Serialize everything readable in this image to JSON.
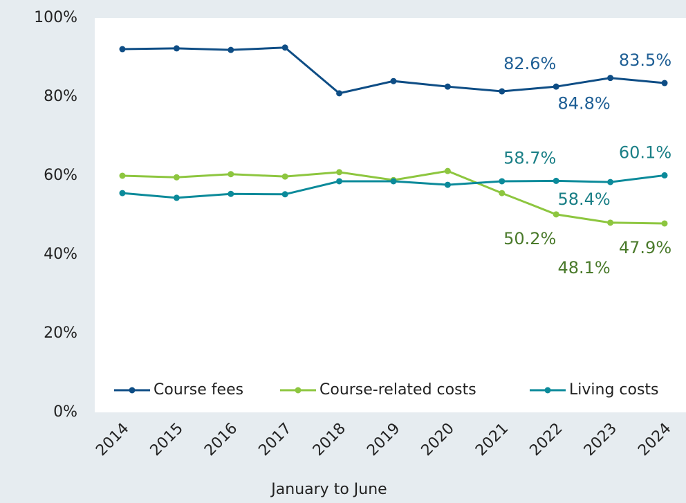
{
  "chart_data": {
    "type": "line",
    "x_label": "January to June",
    "categories": [
      "2014",
      "2015",
      "2016",
      "2017",
      "2018",
      "2019",
      "2020",
      "2021",
      "2022",
      "2023",
      "2024"
    ],
    "series": [
      {
        "name": "Course fees",
        "color": "#0e4d85",
        "label_color": "#1f5f95",
        "values": [
          92.1,
          92.3,
          91.9,
          92.5,
          80.9,
          84.0,
          82.6,
          81.4,
          82.6,
          84.8,
          83.5
        ],
        "value_labels": [
          null,
          null,
          null,
          null,
          null,
          null,
          null,
          null,
          "82.6%",
          "84.8%",
          "83.5%"
        ]
      },
      {
        "name": "Course-related costs",
        "color": "#8dc63f",
        "label_color": "#4a7a2b",
        "values": [
          60.0,
          59.6,
          60.4,
          59.8,
          60.9,
          58.9,
          61.2,
          55.6,
          50.2,
          48.1,
          47.9
        ],
        "value_labels": [
          null,
          null,
          null,
          null,
          null,
          null,
          null,
          null,
          "50.2%",
          "48.1%",
          "47.9%"
        ]
      },
      {
        "name": "Living costs",
        "color": "#0b8a9a",
        "label_color": "#1a7f86",
        "values": [
          55.6,
          54.4,
          55.4,
          55.3,
          58.6,
          58.6,
          57.7,
          58.6,
          58.7,
          58.4,
          60.1
        ],
        "value_labels": [
          null,
          null,
          null,
          null,
          null,
          null,
          null,
          null,
          "58.7%",
          "58.4%",
          "60.1%"
        ]
      }
    ],
    "ylim": [
      0,
      100
    ],
    "yticks": [
      {
        "value": 0,
        "label": "0%"
      },
      {
        "value": 20,
        "label": "20%"
      },
      {
        "value": 40,
        "label": "40%"
      },
      {
        "value": 60,
        "label": "60%"
      },
      {
        "value": 80,
        "label": "80%"
      },
      {
        "value": 100,
        "label": "100%"
      }
    ],
    "grid": false,
    "legend": "bottom"
  }
}
